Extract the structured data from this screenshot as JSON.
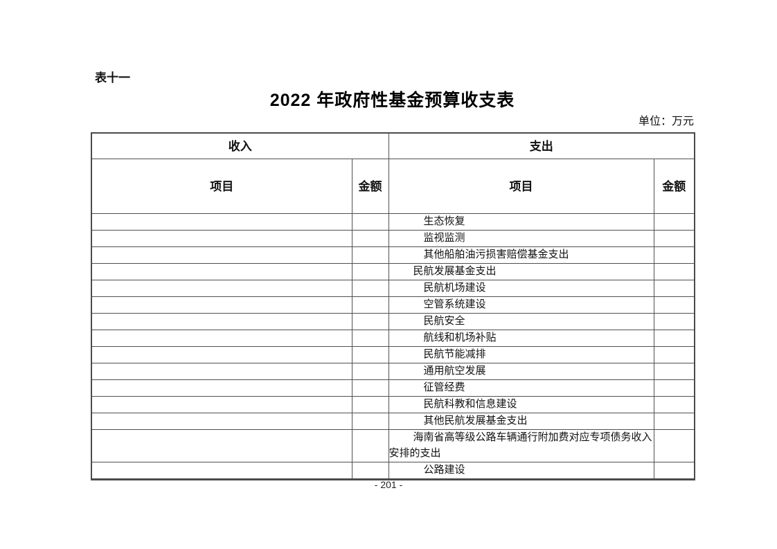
{
  "document": {
    "table_label": "表十一",
    "title": "2022 年政府性基金预算收支表",
    "unit_note": "单位：万元",
    "page_number": "- 201 -"
  },
  "table": {
    "sections": {
      "income": "收入",
      "expense": "支出"
    },
    "columns": {
      "item": "项目",
      "amount": "金额"
    },
    "rows": [
      {
        "income_item": "",
        "income_amount": "",
        "expense_item": "生态恢复",
        "expense_amount": "",
        "expense_indent": 2
      },
      {
        "income_item": "",
        "income_amount": "",
        "expense_item": "监视监测",
        "expense_amount": "",
        "expense_indent": 2
      },
      {
        "income_item": "",
        "income_amount": "",
        "expense_item": "其他船舶油污损害赔偿基金支出",
        "expense_amount": "",
        "expense_indent": 2
      },
      {
        "income_item": "",
        "income_amount": "",
        "expense_item": "民航发展基金支出",
        "expense_amount": "",
        "expense_indent": 1
      },
      {
        "income_item": "",
        "income_amount": "",
        "expense_item": "民航机场建设",
        "expense_amount": "",
        "expense_indent": 2
      },
      {
        "income_item": "",
        "income_amount": "",
        "expense_item": "空管系统建设",
        "expense_amount": "",
        "expense_indent": 2
      },
      {
        "income_item": "",
        "income_amount": "",
        "expense_item": "民航安全",
        "expense_amount": "",
        "expense_indent": 2
      },
      {
        "income_item": "",
        "income_amount": "",
        "expense_item": "航线和机场补贴",
        "expense_amount": "",
        "expense_indent": 2
      },
      {
        "income_item": "",
        "income_amount": "",
        "expense_item": "民航节能减排",
        "expense_amount": "",
        "expense_indent": 2
      },
      {
        "income_item": "",
        "income_amount": "",
        "expense_item": "通用航空发展",
        "expense_amount": "",
        "expense_indent": 2
      },
      {
        "income_item": "",
        "income_amount": "",
        "expense_item": "征管经费",
        "expense_amount": "",
        "expense_indent": 2
      },
      {
        "income_item": "",
        "income_amount": "",
        "expense_item": "民航科教和信息建设",
        "expense_amount": "",
        "expense_indent": 2
      },
      {
        "income_item": "",
        "income_amount": "",
        "expense_item": "其他民航发展基金支出",
        "expense_amount": "",
        "expense_indent": 2
      },
      {
        "income_item": "",
        "income_amount": "",
        "expense_item": "海南省高等级公路车辆通行附加费对应专项债务收入安排的支出",
        "expense_amount": "",
        "expense_indent": 1,
        "tall": true
      },
      {
        "income_item": "",
        "income_amount": "",
        "expense_item": "公路建设",
        "expense_amount": "",
        "expense_indent": 2
      }
    ]
  }
}
